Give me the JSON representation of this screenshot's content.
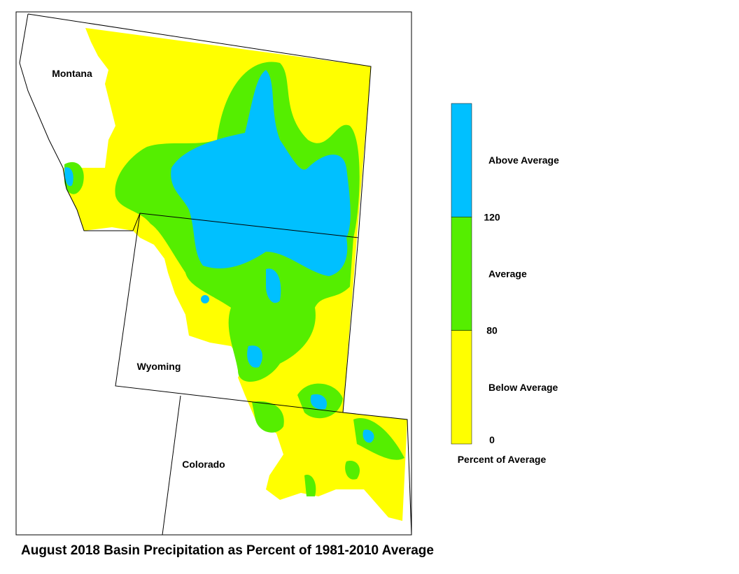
{
  "title": "August 2018 Basin Precipitation as Percent of 1981-2010 Average",
  "states": [
    {
      "label": "Montana"
    },
    {
      "label": "Wyoming"
    },
    {
      "label": "Colorado"
    }
  ],
  "legend": {
    "title": "Percent of Average",
    "classes": [
      {
        "label": "Above Average",
        "color": "#00c0ff"
      },
      {
        "label": "Average",
        "color": "#55ee00"
      },
      {
        "label": "Below Average",
        "color": "#ffff00"
      }
    ],
    "ticks": [
      120,
      80,
      0
    ]
  }
}
